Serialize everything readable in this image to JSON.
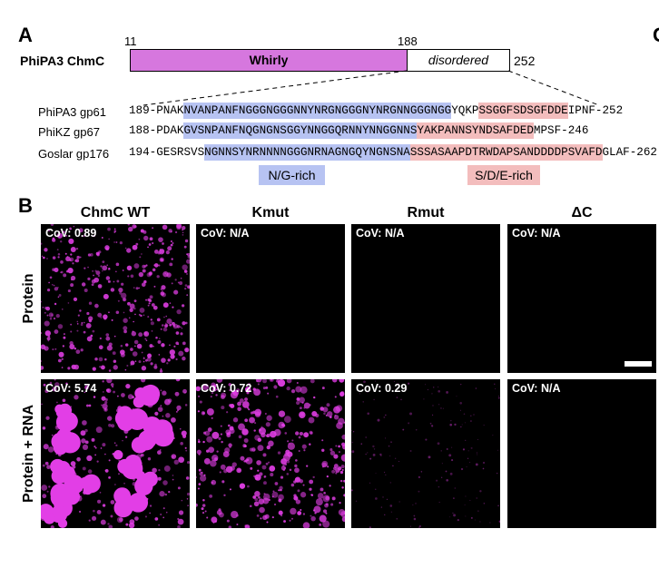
{
  "panel_a": {
    "label": "A",
    "protein": "PhiPA3 ChmC",
    "positions": [
      "11",
      "188",
      "252"
    ],
    "domains": [
      "Whirly",
      "disordered"
    ],
    "sequences": [
      {
        "name": "PhiPA3 gp61",
        "segments": [
          {
            "text": "189-PNAK"
          },
          {
            "text": "NVANPANFNGGGNGGGNNYNRGNGGGNYNRGNNGGGNGG",
            "color": "#b7c3f2"
          },
          {
            "text": "YQKP"
          },
          {
            "text": "SSGGFSDSGFDDE",
            "color": "#f3bdbd"
          },
          {
            "text": "IPNF-252"
          }
        ]
      },
      {
        "name": "PhiKZ gp67",
        "segments": [
          {
            "text": "188-PDAK"
          },
          {
            "text": "GVSNPANFNQGNGNSGGYNNGGQRNNYNNGGNNS",
            "color": "#b7c3f2"
          },
          {
            "text": "YAKPANNSYNDSAFDED",
            "color": "#f3bdbd"
          },
          {
            "text": "MPSF-246"
          }
        ]
      },
      {
        "name": "Goslar gp176",
        "segments": [
          {
            "text": "194-GESRSVS"
          },
          {
            "text": "NGNNSYNRNNNNGGGNRNAGNGQYNGNSNA",
            "color": "#b7c3f2"
          },
          {
            "text": "SSSASAAPDTRWDAPSANDDDDPSVAFD",
            "color": "#f3bdbd"
          },
          {
            "text": "GLAF-262"
          }
        ]
      }
    ],
    "regions": [
      {
        "text": "N/G-rich",
        "color": "#b7c3f2"
      },
      {
        "text": "S/D/E-rich",
        "color": "#f3bdbd"
      }
    ]
  },
  "panel_b": {
    "label": "B",
    "columns": [
      "ChmC WT",
      "Kmut",
      "Rmut",
      "ΔC"
    ],
    "rows": [
      "Protein",
      "Protein + RNA"
    ],
    "cov": [
      [
        "CoV: 0.89",
        "CoV: N/A",
        "CoV: N/A",
        "CoV: N/A"
      ],
      [
        "CoV: 5.74",
        "CoV: 0.72",
        "CoV: 0.29",
        "CoV: N/A"
      ]
    ]
  },
  "panel_c": {
    "label": "C"
  }
}
